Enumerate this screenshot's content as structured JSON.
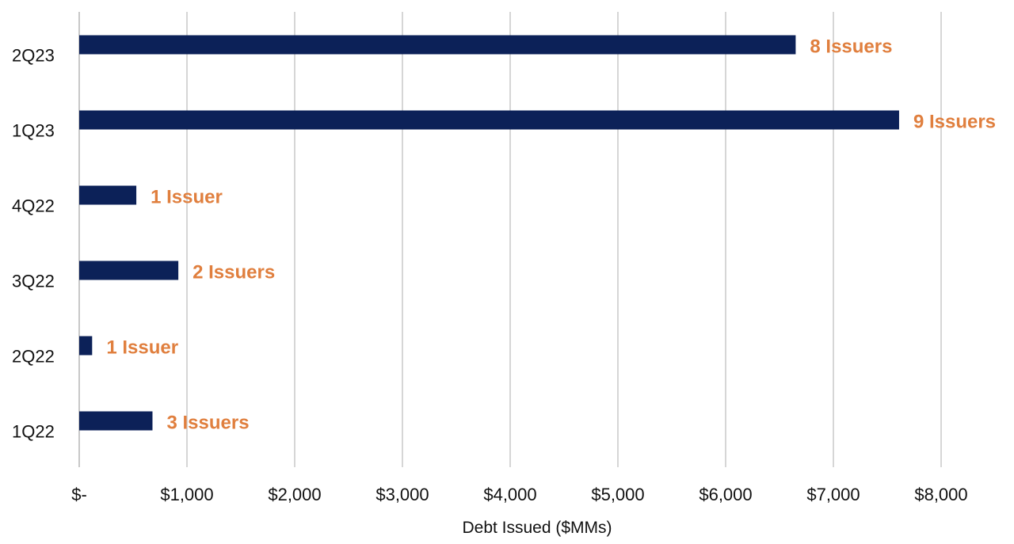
{
  "chart_data": {
    "type": "bar",
    "orientation": "horizontal",
    "title": "",
    "xlabel": "Debt Issued ($MMs)",
    "ylabel": "",
    "xlim": [
      0,
      8000
    ],
    "x_ticks": [
      0,
      1000,
      2000,
      3000,
      4000,
      5000,
      6000,
      7000,
      8000
    ],
    "x_tick_labels": [
      "$-",
      "$1,000",
      "$2,000",
      "$3,000",
      "$4,000",
      "$5,000",
      "$6,000",
      "$7,000",
      "$8,000"
    ],
    "grid": true,
    "legend": "none",
    "categories": [
      "2Q23",
      "1Q23",
      "4Q22",
      "3Q22",
      "2Q22",
      "1Q22"
    ],
    "values": [
      6650,
      7610,
      530,
      920,
      120,
      680
    ],
    "data_labels": [
      "8 Issuers",
      "9 Issuers",
      "1 Issuer",
      "2 Issuers",
      "1 Issuer",
      "3 Issuers"
    ],
    "colors": {
      "bar": "#0c2158",
      "label": "#e07f3e",
      "grid": "#d6d6d6",
      "axis": "#c8c8c8"
    }
  }
}
